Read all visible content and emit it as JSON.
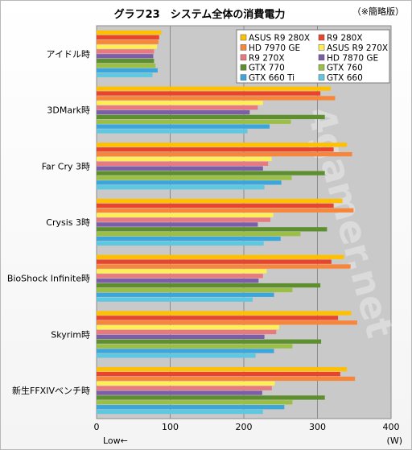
{
  "chart_data": {
    "type": "bar",
    "orientation": "horizontal",
    "title": "グラフ23　システム全体の消費電力",
    "note": "（※簡略版）",
    "xlabel_left": "Low←",
    "xunit": "(W)",
    "xlim": [
      0,
      400
    ],
    "xticks": [
      0,
      100,
      200,
      300,
      400
    ],
    "grid": true,
    "legend_position": "top-right",
    "watermark": "4gamer.net",
    "categories": [
      "アイドル時",
      "3DMark時",
      "Far Cry 3時",
      "Crysis 3時",
      "BioShock Infinite時",
      "Skyrim時",
      "新生FFXIVベンチ時"
    ],
    "series": [
      {
        "name": "ASUS R9 280X",
        "color": "#ffc000",
        "values": [
          88,
          318,
          340,
          334,
          336,
          346,
          340
        ]
      },
      {
        "name": "R9 280X",
        "color": "#e8452c",
        "values": [
          85,
          304,
          322,
          322,
          319,
          328,
          331
        ]
      },
      {
        "name": "HD 7970 GE",
        "color": "#f7863a",
        "values": [
          84,
          324,
          347,
          349,
          345,
          354,
          351
        ]
      },
      {
        "name": "ASUS R9 270X",
        "color": "#ffee55",
        "values": [
          82,
          226,
          238,
          240,
          231,
          248,
          242
        ]
      },
      {
        "name": "R9 270X",
        "color": "#e7797f",
        "values": [
          78,
          219,
          233,
          236,
          226,
          244,
          238
        ]
      },
      {
        "name": "HD 7870 GE",
        "color": "#7b5ea7",
        "values": [
          77,
          208,
          226,
          219,
          220,
          228,
          225
        ]
      },
      {
        "name": "GTX 770",
        "color": "#5d8f2f",
        "values": [
          78,
          310,
          310,
          313,
          304,
          305,
          310
        ]
      },
      {
        "name": "GTX 760",
        "color": "#9bbf45",
        "values": [
          80,
          264,
          265,
          277,
          266,
          266,
          266
        ]
      },
      {
        "name": "GTX 660 Ti",
        "color": "#3aa6dc",
        "values": [
          83,
          235,
          251,
          250,
          241,
          241,
          255
        ]
      },
      {
        "name": "GTX 660",
        "color": "#5ec8e0",
        "values": [
          76,
          205,
          228,
          227,
          212,
          216,
          226
        ]
      }
    ]
  }
}
